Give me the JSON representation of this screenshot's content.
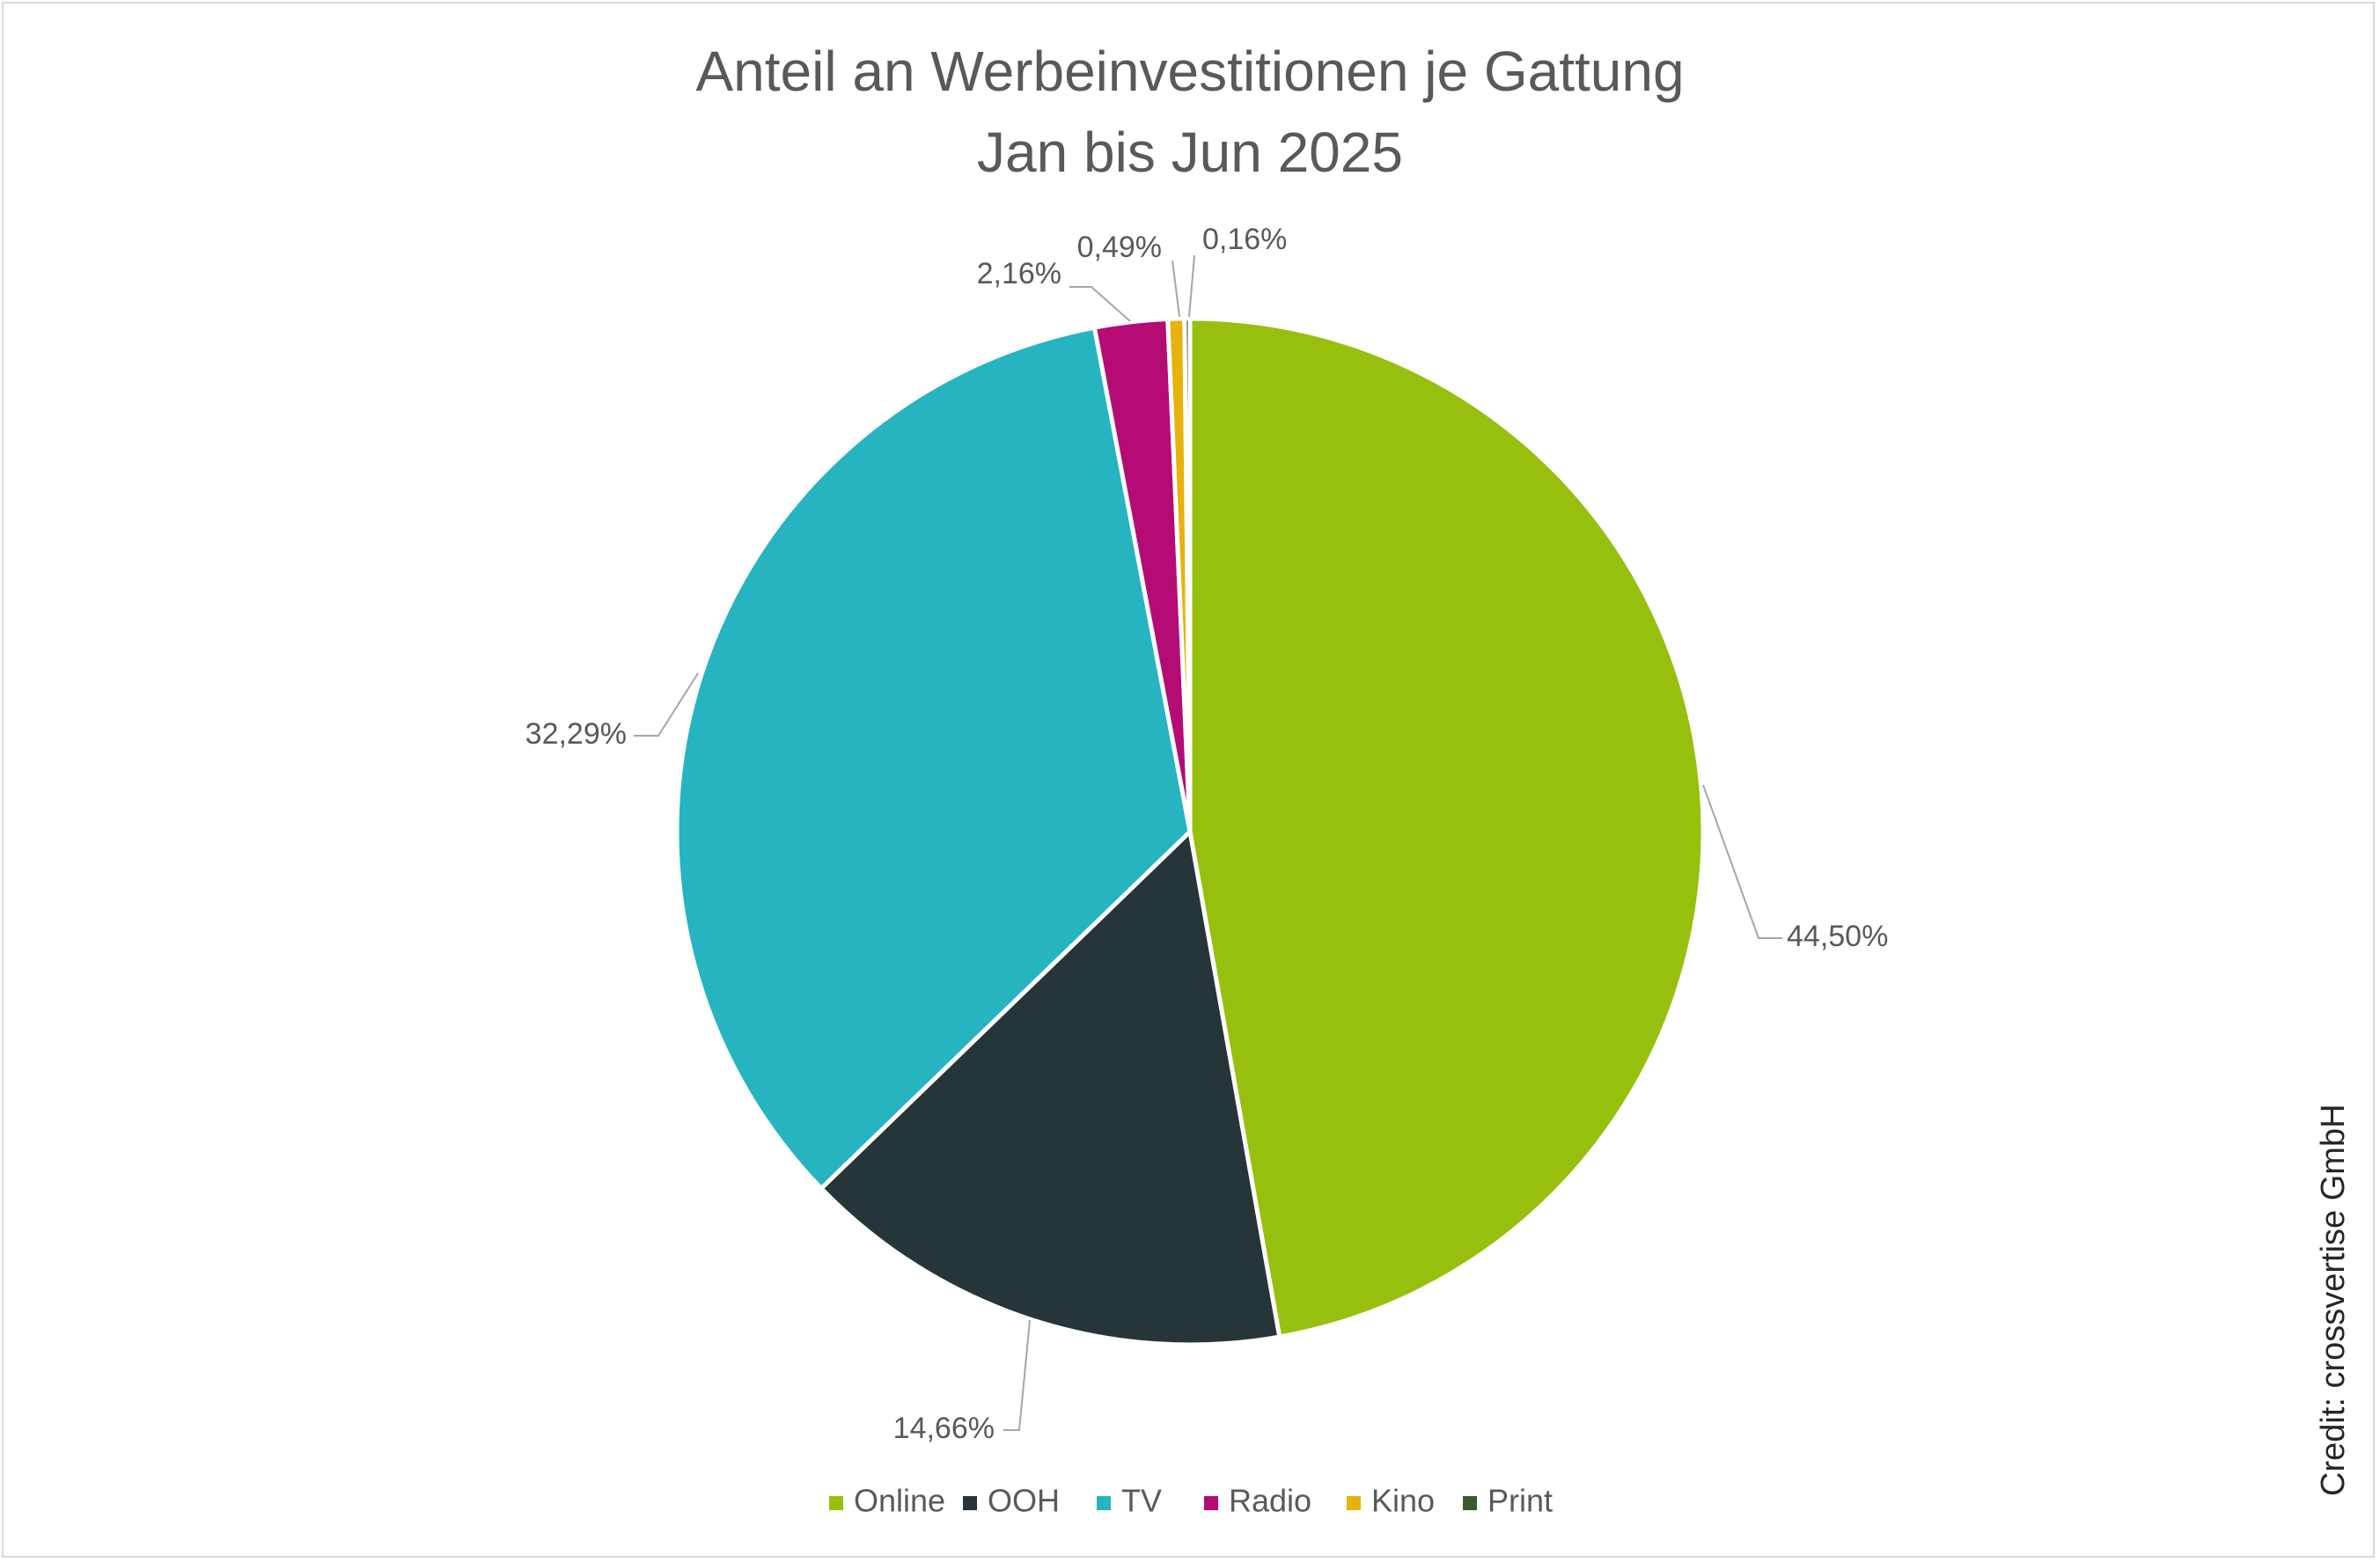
{
  "title": {
    "line1": "Anteil an Werbeinvestitionen je Gattung",
    "line2": "Jan bis Jun 2025"
  },
  "credit": "Credit: crossvertise GmbH",
  "chart_data": {
    "type": "pie",
    "title": "Anteil an Werbeinvestitionen je Gattung Jan bis Jun 2025",
    "start_angle_deg": 0,
    "direction": "clockwise",
    "legend_position": "bottom",
    "slices": [
      {
        "name": "Online",
        "value": 44.5,
        "label": "44,50%",
        "color": "#97c00e"
      },
      {
        "name": "OOH",
        "value": 14.66,
        "label": "14,66%",
        "color": "#263538"
      },
      {
        "name": "TV",
        "value": 32.29,
        "label": "32,29%",
        "color": "#26b4c0"
      },
      {
        "name": "Radio",
        "value": 2.16,
        "label": "2,16%",
        "color": "#b40c74"
      },
      {
        "name": "Kino",
        "value": 0.49,
        "label": "0,49%",
        "color": "#e7b20c"
      },
      {
        "name": "Print",
        "value": 0.16,
        "label": "0,16%",
        "color": "#3a5b2e"
      }
    ]
  }
}
